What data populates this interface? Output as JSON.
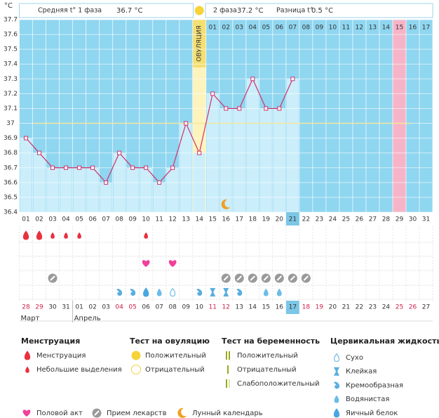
{
  "chart_data": {
    "type": "line",
    "y_unit": "°C",
    "ylim": [
      36.4,
      37.7
    ],
    "yticks": [
      36.4,
      36.5,
      36.6,
      36.7,
      36.8,
      36.9,
      37,
      37.1,
      37.2,
      37.3,
      37.4,
      37.5,
      37.6,
      37.7
    ],
    "categories": [
      "01",
      "02",
      "03",
      "04",
      "05",
      "06",
      "07",
      "08",
      "09",
      "10",
      "11",
      "12",
      "13",
      "14",
      "15",
      "16",
      "17",
      "18",
      "19",
      "20",
      "21",
      "22",
      "23",
      "24",
      "25",
      "26",
      "27",
      "28",
      "29",
      "30",
      "31"
    ],
    "series": [
      {
        "color": "#d0306a",
        "values": [
          36.9,
          36.8,
          36.7,
          36.7,
          36.7,
          36.7,
          36.6,
          36.8,
          36.7,
          36.7,
          36.6,
          36.7,
          37,
          36.8,
          37.2,
          37.1,
          37.1,
          37.3,
          37.1,
          37.1,
          37.3,
          null,
          null,
          null,
          null,
          null,
          null,
          null,
          null,
          null,
          null
        ]
      }
    ],
    "coverline": 37,
    "ovulation_day": "14",
    "ovulation_label": "ОВУЛЯЦИЯ",
    "today": "21",
    "expected_period": "29",
    "phase2_days": [
      "01",
      "02",
      "03",
      "04",
      "05",
      "06",
      "07",
      "08",
      "09",
      "10",
      "11",
      "12",
      "13",
      "14",
      "15",
      "16",
      "17"
    ]
  },
  "header": {
    "phase1_label": "Средняя t° 1 фаза",
    "phase1_value": "36.7 °C",
    "phase2_label": "2 фаза",
    "phase2_value": "37.2 °C",
    "diff_label": "Разница t°",
    "diff_value": "0.5 °C"
  },
  "calendar": {
    "dates": [
      "28",
      "29",
      "30",
      "31",
      "01",
      "02",
      "03",
      "04",
      "05",
      "06",
      "07",
      "08",
      "09",
      "10",
      "11",
      "12",
      "13",
      "14",
      "15",
      "16",
      "17",
      "18",
      "19",
      "20",
      "21",
      "22",
      "23",
      "24",
      "25",
      "26",
      "27"
    ],
    "weekends": [
      "01",
      "02",
      "08",
      "09",
      "15",
      "16",
      "22",
      "23",
      "29",
      "30"
    ],
    "months": [
      {
        "label": "Март",
        "day": "01"
      },
      {
        "label": "Апрель",
        "day": "05"
      }
    ]
  },
  "tracks": {
    "ovulation_test": {
      "14": "positive"
    },
    "menstruation": {
      "01": "heavy",
      "02": "heavy",
      "03": "light",
      "04": "light",
      "05": "light",
      "10": "light"
    },
    "intercourse": {
      "10": "heart",
      "12": "heart"
    },
    "medication": {
      "03": "pill",
      "16": "pill",
      "17": "pill",
      "18": "pill",
      "19": "pill",
      "20": "pill",
      "21": "pill",
      "22": "pill"
    },
    "lunar": {
      "16": "moon"
    },
    "cervical_fluid": {
      "08": "creamy",
      "09": "creamy",
      "10": "egg_white",
      "11": "watery",
      "12": "dry",
      "14": "creamy",
      "15": "sticky",
      "16": "sticky",
      "17": "creamy",
      "19": "watery",
      "20": "watery"
    }
  },
  "legend": {
    "groups": [
      {
        "title": "Менструация",
        "items": [
          {
            "label": "Менструация",
            "icon": "heavy"
          },
          {
            "label": "Небольшие выделения",
            "icon": "light"
          }
        ]
      },
      {
        "title": "Тест на овуляцию",
        "items": [
          {
            "label": "Положительный",
            "icon": "positive"
          },
          {
            "label": "Отрицательный",
            "icon": "negative"
          }
        ]
      },
      {
        "title": "Тест на беременность",
        "items": [
          {
            "label": "Положительный",
            "icon": "preg_pos"
          },
          {
            "label": "Отрицательный",
            "icon": "preg_neg"
          },
          {
            "label": "Слабоположительный",
            "icon": "preg_weak"
          }
        ]
      },
      {
        "title": "Цервикальная жидкость",
        "items": [
          {
            "label": "Сухо",
            "icon": "dry"
          },
          {
            "label": "Клейкая",
            "icon": "sticky"
          },
          {
            "label": "Кремообразная",
            "icon": "creamy"
          },
          {
            "label": "Водянистая",
            "icon": "watery"
          },
          {
            "label": "Яичный белок",
            "icon": "egg_white"
          }
        ]
      }
    ],
    "other": [
      {
        "label": "Половой акт",
        "icon": "heart"
      },
      {
        "label": "Прием лекарств",
        "icon": "pill"
      },
      {
        "label": "Лунный календарь",
        "icon": "moon"
      }
    ]
  }
}
